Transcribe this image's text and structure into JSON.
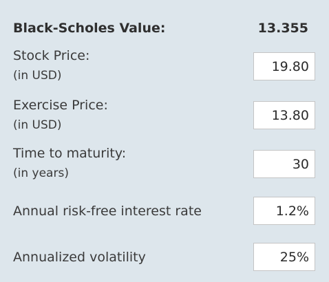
{
  "result": {
    "label": "Black-Scholes Value:",
    "value": "13.355"
  },
  "inputs": [
    {
      "label": "Stock Price:",
      "sublabel": "(in USD)",
      "value": "19.80"
    },
    {
      "label": "Exercise Price:",
      "sublabel": "(in USD)",
      "value": "13.80"
    },
    {
      "label": "Time to maturity:",
      "sublabel": "(in years)",
      "value": "30"
    },
    {
      "label": "Annual risk-free interest rate",
      "value": "1.2%"
    },
    {
      "label": "Annualized volatility",
      "value": "25%"
    }
  ]
}
